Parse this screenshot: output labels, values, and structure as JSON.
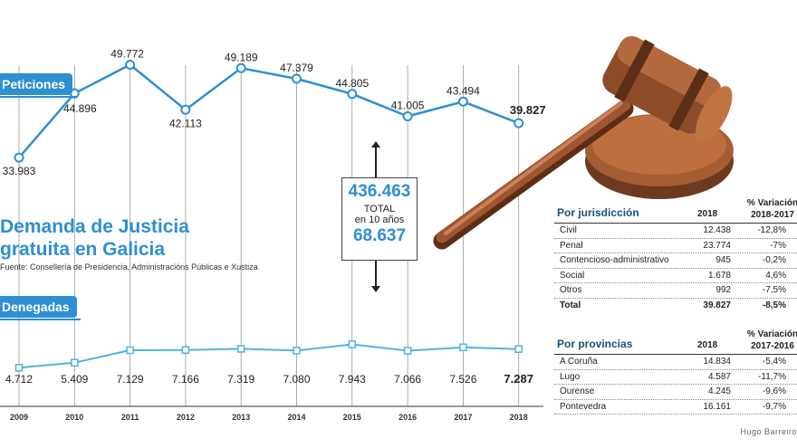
{
  "title_line1": "Demanda de Justicia",
  "title_line2": "gratuita en Galicia",
  "source": "Fuente: Consellería de Presidencia, Administracións Públicas e Xustiza",
  "credit": "Hugo Barreiro",
  "colors": {
    "accent": "#2e8fd3",
    "denied_line": "#4fb3e0",
    "gavel": "#8b4a2b"
  },
  "icons": {
    "illustration": "judge-gavel-icon"
  },
  "total_box": {
    "total_requests": "436.463",
    "label": "TOTAL",
    "sublabel": "en 10 años",
    "total_denied": "68.637"
  },
  "chart_data": [
    {
      "type": "line",
      "name": "Peticiones",
      "x": [
        "2009",
        "2010",
        "2011",
        "2012",
        "2013",
        "2014",
        "2015",
        "2016",
        "2017",
        "2018"
      ],
      "values": [
        33983,
        44896,
        49772,
        42113,
        49189,
        47379,
        44805,
        41005,
        43494,
        39827
      ],
      "labels": [
        "33.983",
        "44.896",
        "49.772",
        "42.113",
        "49.189",
        "47.379",
        "44.805",
        "41.005",
        "43.494",
        "39.827"
      ]
    },
    {
      "type": "line",
      "name": "Denegadas",
      "x": [
        "2009",
        "2010",
        "2011",
        "2012",
        "2013",
        "2014",
        "2015",
        "2016",
        "2017",
        "2018"
      ],
      "values": [
        4712,
        5409,
        7129,
        7166,
        7319,
        7080,
        7943,
        7066,
        7526,
        7287
      ],
      "labels": [
        "4.712",
        "5.409",
        "7.129",
        "7.166",
        "7.319",
        "7.080",
        "7.943",
        "7.066",
        "7.526",
        "7.287"
      ]
    }
  ],
  "table_jurisdiccion": {
    "header": "Por jurisdicción",
    "col_year": "2018",
    "col_var_line1": "% Variación",
    "col_var_line2": "2018-2017",
    "rows": [
      {
        "name": "Civil",
        "value": "12.438",
        "var": "-12,8%"
      },
      {
        "name": "Penal",
        "value": "23.774",
        "var": "-7%"
      },
      {
        "name": "Contencioso-administrativo",
        "value": "945",
        "var": "-0,2%"
      },
      {
        "name": "Social",
        "value": "1.678",
        "var": "4,6%"
      },
      {
        "name": "Otros",
        "value": "992",
        "var": "-7,5%"
      }
    ],
    "total": {
      "name": "Total",
      "value": "39.827",
      "var": "-8,5%"
    }
  },
  "table_provincias": {
    "header": "Por provincias",
    "col_year": "2018",
    "col_var_line1": "% Variación",
    "col_var_line2": "2017-2016",
    "rows": [
      {
        "name": "A Coruña",
        "value": "14.834",
        "var": "-5,4%"
      },
      {
        "name": "Lugo",
        "value": "4.587",
        "var": "-11,7%"
      },
      {
        "name": "Ourense",
        "value": "4.245",
        "var": "-9,6%"
      },
      {
        "name": "Pontevedra",
        "value": "16.161",
        "var": "-9,7%"
      }
    ]
  }
}
